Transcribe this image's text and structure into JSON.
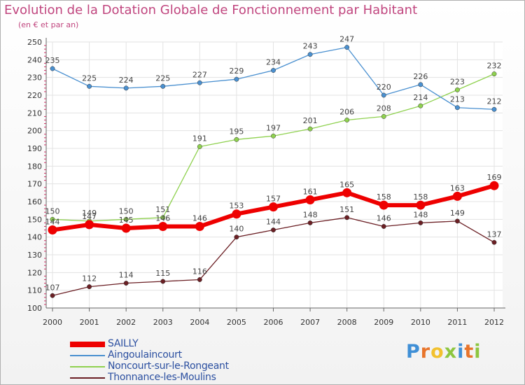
{
  "header": {
    "title": "Evolution de la Dotation Globale de Fonctionnement par Habitant",
    "subtitle": "(en € et par an)"
  },
  "brand": {
    "letters": [
      "P",
      "r",
      "o",
      "x",
      "i",
      "t",
      "i"
    ],
    "colors": [
      "#3f8fd6",
      "#e8742a",
      "#f2c12e",
      "#8dc63f",
      "#3f8fd6",
      "#e8742a",
      "#8dc63f"
    ]
  },
  "chart_data": {
    "type": "line",
    "title": "Evolution de la Dotation Globale de Fonctionnement par Habitant",
    "subtitle": "(en € et par an)",
    "x": [
      "2000",
      "2001",
      "2002",
      "2003",
      "2004",
      "2005",
      "2006",
      "2007",
      "2008",
      "2009",
      "2010",
      "2011",
      "2012"
    ],
    "ylim": [
      100,
      250
    ],
    "yticks": [
      100,
      110,
      120,
      130,
      140,
      150,
      160,
      170,
      180,
      190,
      200,
      210,
      220,
      230,
      240,
      250
    ],
    "grid": true,
    "legend_position": "bottom-left",
    "series": [
      {
        "name": "SAILLY",
        "color": "#ee0000",
        "values": [
          144,
          147,
          145,
          146,
          146,
          153,
          157,
          161,
          165,
          158,
          158,
          163,
          169
        ]
      },
      {
        "name": "Aingoulaincourt",
        "color": "#4a90d0",
        "values": [
          235,
          225,
          224,
          225,
          227,
          229,
          234,
          243,
          247,
          220,
          226,
          213,
          212
        ]
      },
      {
        "name": "Noncourt-sur-le-Rongeant",
        "color": "#8fd14f",
        "values": [
          150,
          149,
          150,
          151,
          191,
          195,
          197,
          201,
          206,
          208,
          214,
          223,
          232
        ]
      },
      {
        "name": "Thonnance-les-Moulins",
        "color": "#6b1f24",
        "values": [
          107,
          112,
          114,
          115,
          116,
          140,
          144,
          148,
          151,
          146,
          148,
          149,
          137
        ]
      }
    ]
  }
}
